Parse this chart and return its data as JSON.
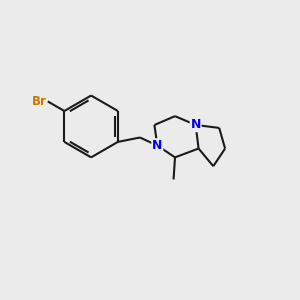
{
  "background_color": "#ebebeb",
  "bond_color": "#1a1a1a",
  "N_color": "#0000EE",
  "Br_color": "#CC7700",
  "line_width": 1.5,
  "figsize": [
    3.0,
    3.0
  ],
  "dpi": 100,
  "xlim": [
    0,
    10
  ],
  "ylim": [
    0,
    10
  ]
}
